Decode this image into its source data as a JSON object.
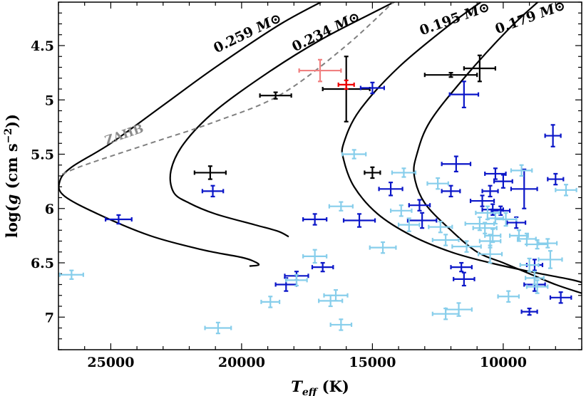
{
  "chart_data": {
    "type": "scatter",
    "title": "",
    "xlabel": {
      "main": "T",
      "sub": "eff",
      "unit": " (K)"
    },
    "ylabel": {
      "pre": "log(",
      "g": "g",
      "unit": " (cm s",
      "sup": "−2",
      "post": "))"
    },
    "xlim": [
      27000,
      7000
    ],
    "ylim": [
      7.3,
      4.1
    ],
    "x_ticks": [
      25000,
      20000,
      15000,
      10000
    ],
    "x_tick_labels": [
      "25000",
      "20000",
      "15000",
      "10000"
    ],
    "y_ticks": [
      4.5,
      5,
      5.5,
      6,
      6.5,
      7
    ],
    "y_tick_labels": [
      "4.5",
      "5",
      "5.5",
      "6",
      "6.5",
      "7"
    ],
    "x_minor_step": 1000,
    "y_minor_step": 0.1,
    "tracks": [
      {
        "label": "0.259",
        "unit": "M⊙",
        "points": [
          [
            16400,
            4.03
          ],
          [
            18500,
            4.3
          ],
          [
            21000,
            4.7
          ],
          [
            23000,
            5.05
          ],
          [
            25000,
            5.4
          ],
          [
            26500,
            5.62
          ],
          [
            26950,
            5.75
          ],
          [
            26800,
            5.88
          ],
          [
            25500,
            6.05
          ],
          [
            23500,
            6.25
          ],
          [
            21500,
            6.38
          ],
          [
            20000,
            6.45
          ],
          [
            19500,
            6.49
          ],
          [
            19350,
            6.52
          ],
          [
            19700,
            6.53
          ]
        ]
      },
      {
        "label": "0.234",
        "unit": "M⊙",
        "points": [
          [
            13600,
            4.03
          ],
          [
            15000,
            4.2
          ],
          [
            17000,
            4.45
          ],
          [
            19000,
            4.75
          ],
          [
            21000,
            5.1
          ],
          [
            22200,
            5.4
          ],
          [
            22700,
            5.65
          ],
          [
            22600,
            5.85
          ],
          [
            22000,
            5.95
          ],
          [
            21000,
            6.05
          ],
          [
            19500,
            6.15
          ],
          [
            18600,
            6.21
          ],
          [
            18200,
            6.26
          ]
        ]
      },
      {
        "label": "0.195",
        "unit": "M⊙",
        "points": [
          [
            10500,
            4.04
          ],
          [
            12000,
            4.3
          ],
          [
            14000,
            4.7
          ],
          [
            15500,
            5.1
          ],
          [
            16100,
            5.4
          ],
          [
            16100,
            5.55
          ],
          [
            15700,
            5.8
          ],
          [
            14800,
            6.05
          ],
          [
            13500,
            6.25
          ],
          [
            12000,
            6.4
          ],
          [
            10500,
            6.5
          ],
          [
            9000,
            6.58
          ],
          [
            7500,
            6.65
          ],
          [
            7000,
            6.68
          ]
        ]
      },
      {
        "label": "0.179",
        "unit": "M⊙",
        "points": [
          [
            8400,
            4.04
          ],
          [
            9800,
            4.35
          ],
          [
            11500,
            4.8
          ],
          [
            12800,
            5.2
          ],
          [
            13300,
            5.5
          ],
          [
            13400,
            5.7
          ],
          [
            13000,
            5.95
          ],
          [
            12000,
            6.2
          ],
          [
            11000,
            6.4
          ],
          [
            10000,
            6.5
          ],
          [
            9000,
            6.6
          ],
          [
            8000,
            6.7
          ],
          [
            7000,
            6.78
          ]
        ]
      }
    ],
    "zahb": {
      "label": "ZAHB",
      "points": [
        [
          13900,
          4.03
        ],
        [
          16000,
          4.5
        ],
        [
          18500,
          4.95
        ],
        [
          21000,
          5.2
        ],
        [
          23500,
          5.4
        ],
        [
          26000,
          5.6
        ],
        [
          27000,
          5.7
        ]
      ]
    },
    "series": [
      {
        "color": "#000000",
        "points": [
          [
            18700,
            4.96,
            600,
            0.03
          ],
          [
            21200,
            5.67,
            600,
            0.06
          ],
          [
            15000,
            5.67,
            300,
            0.05
          ],
          [
            16000,
            4.9,
            900,
            0.3
          ],
          [
            12000,
            4.77,
            1000,
            0.02
          ],
          [
            10900,
            4.71,
            600,
            0.12
          ]
        ]
      },
      {
        "color": "#f08080",
        "points": [
          [
            17000,
            4.73,
            800,
            0.1
          ]
        ]
      },
      {
        "color": "#ee0000",
        "points": [
          [
            16000,
            4.86,
            300,
            0.04
          ]
        ]
      },
      {
        "color": "#0b16c8",
        "points": [
          [
            24700,
            6.1,
            500,
            0.04
          ],
          [
            21100,
            5.84,
            400,
            0.05
          ],
          [
            15000,
            4.89,
            450,
            0.05
          ],
          [
            11500,
            4.95,
            550,
            0.12
          ],
          [
            14300,
            5.82,
            450,
            0.06
          ],
          [
            13200,
            5.97,
            400,
            0.05
          ],
          [
            13100,
            6.11,
            550,
            0.07
          ],
          [
            12000,
            5.84,
            350,
            0.05
          ],
          [
            11800,
            5.59,
            550,
            0.07
          ],
          [
            15500,
            6.11,
            600,
            0.06
          ],
          [
            17200,
            6.1,
            450,
            0.05
          ],
          [
            17900,
            6.62,
            450,
            0.04
          ],
          [
            18300,
            6.7,
            400,
            0.06
          ],
          [
            16900,
            6.54,
            400,
            0.04
          ],
          [
            11600,
            6.54,
            400,
            0.04
          ],
          [
            11500,
            6.65,
            400,
            0.06
          ],
          [
            10800,
            5.93,
            450,
            0.05
          ],
          [
            10500,
            5.84,
            300,
            0.05
          ],
          [
            10400,
            6.01,
            400,
            0.05
          ],
          [
            10100,
            6.02,
            350,
            0.04
          ],
          [
            10300,
            5.68,
            400,
            0.05
          ],
          [
            10000,
            5.75,
            350,
            0.06
          ],
          [
            9500,
            6.13,
            350,
            0.05
          ],
          [
            9200,
            5.82,
            500,
            0.18
          ],
          [
            8800,
            6.52,
            300,
            0.05
          ],
          [
            8800,
            6.7,
            400,
            0.06
          ],
          [
            8100,
            5.33,
            300,
            0.1
          ],
          [
            8000,
            5.73,
            300,
            0.05
          ],
          [
            7800,
            6.82,
            400,
            0.05
          ],
          [
            9000,
            6.95,
            300,
            0.03
          ]
        ]
      },
      {
        "color": "#87ceeb",
        "points": [
          [
            26500,
            6.61,
            450,
            0.04
          ],
          [
            20900,
            7.1,
            500,
            0.05
          ],
          [
            18900,
            6.86,
            350,
            0.05
          ],
          [
            17900,
            6.66,
            400,
            0.05
          ],
          [
            17200,
            6.44,
            450,
            0.06
          ],
          [
            16600,
            6.85,
            450,
            0.05
          ],
          [
            16400,
            6.8,
            450,
            0.05
          ],
          [
            16200,
            7.07,
            400,
            0.05
          ],
          [
            16200,
            5.98,
            450,
            0.04
          ],
          [
            15700,
            5.5,
            450,
            0.04
          ],
          [
            14600,
            6.36,
            500,
            0.05
          ],
          [
            13900,
            6.02,
            400,
            0.05
          ],
          [
            13600,
            6.15,
            400,
            0.06
          ],
          [
            13800,
            5.67,
            450,
            0.04
          ],
          [
            12500,
            5.77,
            400,
            0.05
          ],
          [
            12400,
            6.17,
            450,
            0.05
          ],
          [
            12200,
            6.29,
            500,
            0.05
          ],
          [
            12200,
            6.97,
            500,
            0.05
          ],
          [
            11700,
            6.93,
            500,
            0.06
          ],
          [
            11400,
            6.35,
            550,
            0.05
          ],
          [
            10900,
            6.14,
            550,
            0.06
          ],
          [
            10700,
            6.18,
            450,
            0.05
          ],
          [
            10600,
            6.04,
            450,
            0.06
          ],
          [
            10500,
            6.3,
            400,
            0.06
          ],
          [
            10500,
            6.42,
            450,
            0.08
          ],
          [
            10400,
            6.25,
            300,
            0.06
          ],
          [
            10300,
            6.09,
            300,
            0.05
          ],
          [
            9900,
            6.1,
            400,
            0.06
          ],
          [
            9800,
            6.81,
            400,
            0.05
          ],
          [
            9400,
            6.25,
            350,
            0.05
          ],
          [
            9300,
            5.65,
            400,
            0.05
          ],
          [
            9100,
            6.28,
            350,
            0.05
          ],
          [
            9000,
            6.52,
            350,
            0.06
          ],
          [
            8800,
            6.64,
            350,
            0.06
          ],
          [
            8700,
            6.33,
            400,
            0.04
          ],
          [
            8300,
            6.32,
            350,
            0.04
          ],
          [
            8200,
            6.47,
            450,
            0.08
          ],
          [
            7600,
            5.83,
            400,
            0.05
          ],
          [
            8700,
            6.72,
            400,
            0.06
          ]
        ]
      }
    ]
  }
}
